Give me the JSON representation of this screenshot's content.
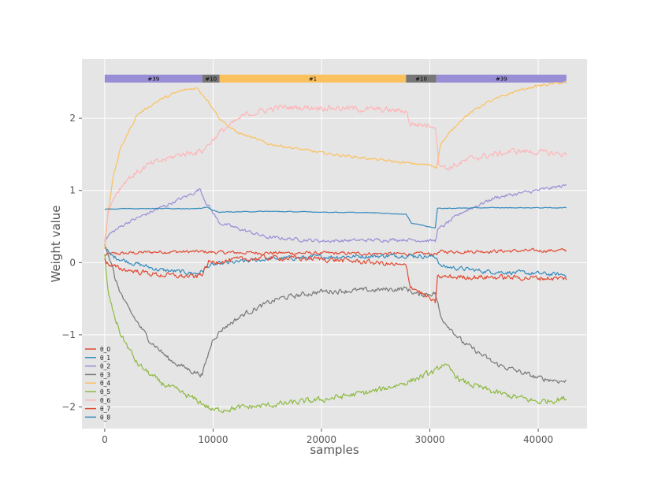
{
  "chart_data": {
    "type": "line",
    "title": "",
    "xlabel": "samples",
    "ylabel": "Weight value",
    "xlim": [
      -2100,
      44500
    ],
    "ylim": [
      -2.3,
      2.82
    ],
    "x_ticks": [
      0,
      10000,
      20000,
      30000,
      40000
    ],
    "x_tick_labels": [
      "0",
      "10000",
      "20000",
      "30000",
      "40000"
    ],
    "y_ticks": [
      -2,
      -1,
      0,
      1,
      2
    ],
    "y_tick_labels": [
      "−2",
      "−1",
      "0",
      "1",
      "2"
    ],
    "grid": true,
    "style": "ggplot",
    "background_color": "#e5e5e5",
    "legend_position": "lower-left",
    "segments": [
      {
        "label": "#39",
        "start": 0,
        "end": 9000,
        "color": "#988ed5"
      },
      {
        "label": "#10",
        "start": 9000,
        "end": 10600,
        "color": "#777777"
      },
      {
        "label": "#1",
        "start": 10600,
        "end": 27800,
        "color": "#fbc15e"
      },
      {
        "label": "#10",
        "start": 27800,
        "end": 30600,
        "color": "#777777"
      },
      {
        "label": "#39",
        "start": 30600,
        "end": 42600,
        "color": "#988ed5"
      }
    ],
    "segment_bar_y": 2.55,
    "series": [
      {
        "name": "θ_0",
        "color": "#e24a33",
        "noise": 0.02,
        "points": [
          [
            0,
            0.1
          ],
          [
            500,
            0.12
          ],
          [
            2000,
            0.13
          ],
          [
            5000,
            0.15
          ],
          [
            9000,
            0.15
          ],
          [
            10600,
            0.14
          ],
          [
            20000,
            0.13
          ],
          [
            27800,
            0.12
          ],
          [
            30500,
            0.12
          ],
          [
            31000,
            0.15
          ],
          [
            42600,
            0.17
          ]
        ]
      },
      {
        "name": "θ_1",
        "color": "#348abd",
        "noise": 0.025,
        "points": [
          [
            0,
            0.25
          ],
          [
            500,
            0.1
          ],
          [
            2000,
            0.02
          ],
          [
            5000,
            -0.1
          ],
          [
            8500,
            -0.15
          ],
          [
            9000,
            -0.12
          ],
          [
            9500,
            -0.05
          ],
          [
            10600,
            -0.02
          ],
          [
            15000,
            0.05
          ],
          [
            20000,
            0.08
          ],
          [
            25000,
            0.09
          ],
          [
            27800,
            0.1
          ],
          [
            30600,
            0.08
          ],
          [
            31000,
            -0.05
          ],
          [
            35000,
            -0.12
          ],
          [
            42600,
            -0.17
          ]
        ]
      },
      {
        "name": "θ_2",
        "color": "#988ed5",
        "noise": 0.02,
        "points": [
          [
            0,
            0.3
          ],
          [
            500,
            0.4
          ],
          [
            2000,
            0.55
          ],
          [
            5000,
            0.75
          ],
          [
            8000,
            0.95
          ],
          [
            8800,
            1.02
          ],
          [
            9300,
            0.85
          ],
          [
            10600,
            0.55
          ],
          [
            15000,
            0.35
          ],
          [
            20000,
            0.3
          ],
          [
            27800,
            0.32
          ],
          [
            30500,
            0.3
          ],
          [
            30700,
            0.45
          ],
          [
            33000,
            0.7
          ],
          [
            36000,
            0.9
          ],
          [
            42600,
            1.07
          ]
        ]
      },
      {
        "name": "θ_3",
        "color": "#777777",
        "noise": 0.03,
        "points": [
          [
            0,
            0.28
          ],
          [
            500,
            0.05
          ],
          [
            1000,
            -0.25
          ],
          [
            2000,
            -0.6
          ],
          [
            4000,
            -1.05
          ],
          [
            6000,
            -1.35
          ],
          [
            8000,
            -1.5
          ],
          [
            9000,
            -1.55
          ],
          [
            9400,
            -1.35
          ],
          [
            10000,
            -1.05
          ],
          [
            11000,
            -0.9
          ],
          [
            13000,
            -0.7
          ],
          [
            16000,
            -0.5
          ],
          [
            20000,
            -0.4
          ],
          [
            25000,
            -0.38
          ],
          [
            27800,
            -0.36
          ],
          [
            29000,
            -0.45
          ],
          [
            30500,
            -0.42
          ],
          [
            31000,
            -0.75
          ],
          [
            33000,
            -1.1
          ],
          [
            36000,
            -1.4
          ],
          [
            40000,
            -1.6
          ],
          [
            42600,
            -1.65
          ]
        ]
      },
      {
        "name": "θ_4",
        "color": "#fbc15e",
        "noise": 0.015,
        "points": [
          [
            0,
            0.2
          ],
          [
            300,
            0.7
          ],
          [
            800,
            1.2
          ],
          [
            1500,
            1.6
          ],
          [
            3000,
            2.05
          ],
          [
            5000,
            2.25
          ],
          [
            7000,
            2.38
          ],
          [
            8500,
            2.42
          ],
          [
            9500,
            2.25
          ],
          [
            10600,
            2.0
          ],
          [
            12000,
            1.82
          ],
          [
            15000,
            1.65
          ],
          [
            20000,
            1.52
          ],
          [
            25000,
            1.43
          ],
          [
            27800,
            1.38
          ],
          [
            30000,
            1.35
          ],
          [
            30600,
            1.32
          ],
          [
            31000,
            1.65
          ],
          [
            33000,
            2.0
          ],
          [
            35000,
            2.2
          ],
          [
            38000,
            2.38
          ],
          [
            40000,
            2.45
          ],
          [
            42600,
            2.5
          ]
        ]
      },
      {
        "name": "θ_5",
        "color": "#8eba42",
        "noise": 0.035,
        "points": [
          [
            0,
            0.1
          ],
          [
            300,
            -0.4
          ],
          [
            800,
            -0.7
          ],
          [
            1500,
            -1.0
          ],
          [
            3000,
            -1.4
          ],
          [
            5000,
            -1.65
          ],
          [
            7000,
            -1.8
          ],
          [
            9000,
            -1.95
          ],
          [
            10000,
            -2.05
          ],
          [
            11000,
            -2.03
          ],
          [
            15000,
            -1.98
          ],
          [
            20000,
            -1.9
          ],
          [
            25000,
            -1.78
          ],
          [
            28000,
            -1.65
          ],
          [
            30600,
            -1.5
          ],
          [
            31200,
            -1.4
          ],
          [
            33000,
            -1.65
          ],
          [
            36000,
            -1.8
          ],
          [
            40000,
            -1.93
          ],
          [
            42600,
            -1.88
          ]
        ]
      },
      {
        "name": "θ_6",
        "color": "#ffb5b8",
        "noise": 0.035,
        "points": [
          [
            0,
            0.3
          ],
          [
            300,
            0.7
          ],
          [
            1000,
            0.95
          ],
          [
            2000,
            1.15
          ],
          [
            4000,
            1.35
          ],
          [
            7000,
            1.5
          ],
          [
            9000,
            1.55
          ],
          [
            10600,
            1.8
          ],
          [
            13000,
            2.05
          ],
          [
            16000,
            2.15
          ],
          [
            20000,
            2.15
          ],
          [
            25000,
            2.12
          ],
          [
            27800,
            2.1
          ],
          [
            28200,
            1.92
          ],
          [
            30500,
            1.9
          ],
          [
            30800,
            1.4
          ],
          [
            31500,
            1.3
          ],
          [
            34000,
            1.45
          ],
          [
            38000,
            1.55
          ],
          [
            42600,
            1.5
          ]
        ]
      },
      {
        "name": "θ_7",
        "color": "#e24a33",
        "noise": 0.03,
        "points": [
          [
            0,
            0.05
          ],
          [
            500,
            -0.05
          ],
          [
            2000,
            -0.1
          ],
          [
            5000,
            -0.17
          ],
          [
            8500,
            -0.2
          ],
          [
            9000,
            -0.15
          ],
          [
            9600,
            0.0
          ],
          [
            10600,
            0.02
          ],
          [
            15000,
            0.07
          ],
          [
            20000,
            0.05
          ],
          [
            25000,
            0.0
          ],
          [
            27800,
            -0.05
          ],
          [
            28200,
            -0.32
          ],
          [
            30000,
            -0.5
          ],
          [
            30500,
            -0.57
          ],
          [
            30700,
            -0.2
          ],
          [
            35000,
            -0.2
          ],
          [
            42600,
            -0.22
          ]
        ]
      },
      {
        "name": "θ_8",
        "color": "#348abd",
        "noise": 0.004,
        "points": [
          [
            0,
            0.74
          ],
          [
            2000,
            0.75
          ],
          [
            9000,
            0.75
          ],
          [
            9500,
            0.77
          ],
          [
            10000,
            0.72
          ],
          [
            10600,
            0.7
          ],
          [
            15000,
            0.71
          ],
          [
            20000,
            0.7
          ],
          [
            25000,
            0.69
          ],
          [
            27800,
            0.67
          ],
          [
            28300,
            0.55
          ],
          [
            30500,
            0.48
          ],
          [
            30700,
            0.75
          ],
          [
            35000,
            0.76
          ],
          [
            42600,
            0.76
          ]
        ]
      }
    ]
  }
}
